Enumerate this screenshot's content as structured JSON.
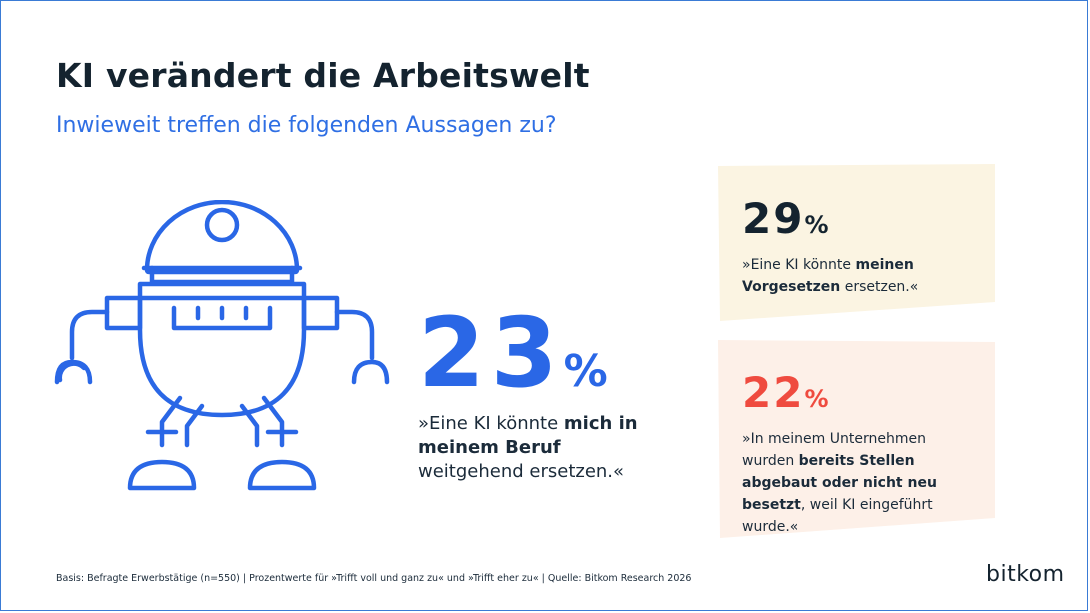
{
  "header": {
    "title": "KI verändert die Arbeitswelt",
    "subtitle": "Inwieweit treffen die folgenden Aussagen zu?"
  },
  "chart_data": {
    "type": "table",
    "unit": "%",
    "statements": [
      {
        "value": 23,
        "quote_pre": "»Eine KI könnte ",
        "quote_bold": "mich in meinem Beruf",
        "quote_post": " weitgehend ersetzen.«",
        "color": "#2a67e6"
      },
      {
        "value": 29,
        "quote_pre": "»Eine KI könnte ",
        "quote_bold": "meinen Vorgesetzen",
        "quote_post": " ersetzen.«",
        "color": "#14232f",
        "card_color": "#fbf4e2"
      },
      {
        "value": 22,
        "quote_pre": "»In meinem Unternehmen wurden ",
        "quote_bold": "bereits Stellen abgebaut oder nicht neu besetzt",
        "quote_post": ", weil KI eingeführt wurde.«",
        "color": "#ef4b3f",
        "card_color": "#fdf0e8"
      }
    ]
  },
  "footer": {
    "note": "Basis: Befragte Erwerbstätige (n=550) | Prozentwerte für »Trifft voll und ganz zu« und »Trifft eher zu« | Quelle: Bitkom Research 2026",
    "logo": "bitkom"
  },
  "colors": {
    "accent": "#2a67e6",
    "dark": "#14232f",
    "red": "#ef4b3f"
  }
}
